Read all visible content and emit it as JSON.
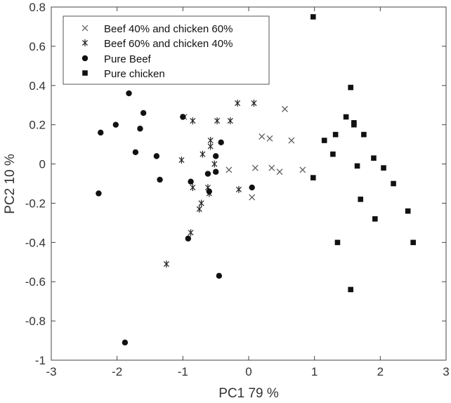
{
  "chart_data": {
    "type": "scatter",
    "xlabel": "PC1  79 %",
    "ylabel": "PC2  10 %",
    "xlim": [
      -3,
      3
    ],
    "ylim": [
      -1,
      0.8
    ],
    "xticks": [
      -3,
      -2,
      -1,
      0,
      1,
      2,
      3
    ],
    "yticks": [
      0.8,
      0.6,
      0.4,
      0.2,
      0,
      -0.2,
      -0.4,
      -0.6,
      -0.8,
      -1
    ],
    "xtick_labels": [
      "-3",
      "-2",
      "-1",
      "0",
      "1",
      "2",
      "3"
    ],
    "ytick_labels": [
      "0.8",
      "0.6",
      "0.4",
      "0.2",
      "0",
      "-0.2",
      "-0.4",
      "-0.6",
      "-0.8",
      "-1"
    ],
    "grid": false,
    "legend_position": "top-left",
    "series": [
      {
        "name": "Beef 40% and chicken 60%",
        "marker": "x",
        "color": "#555555",
        "points": [
          [
            0.55,
            0.28
          ],
          [
            0.2,
            0.14
          ],
          [
            0.32,
            0.13
          ],
          [
            0.65,
            0.12
          ],
          [
            0.1,
            -0.02
          ],
          [
            0.35,
            -0.02
          ],
          [
            0.47,
            -0.04
          ],
          [
            0.82,
            -0.03
          ],
          [
            0.05,
            -0.17
          ],
          [
            -0.3,
            -0.03
          ],
          [
            -0.98,
            0.24
          ]
        ]
      },
      {
        "name": "Beef 60% and chicken 40%",
        "marker": "asterisk",
        "color": "#222222",
        "points": [
          [
            -0.17,
            0.31
          ],
          [
            0.08,
            0.31
          ],
          [
            -0.28,
            0.22
          ],
          [
            -0.48,
            0.22
          ],
          [
            -0.85,
            0.22
          ],
          [
            -0.58,
            0.12
          ],
          [
            -0.58,
            0.09
          ],
          [
            -1.02,
            0.02
          ],
          [
            -0.7,
            0.05
          ],
          [
            -0.52,
            0.0
          ],
          [
            -0.85,
            -0.12
          ],
          [
            -0.62,
            -0.12
          ],
          [
            -0.72,
            -0.2
          ],
          [
            -0.75,
            -0.23
          ],
          [
            -0.6,
            -0.15
          ],
          [
            -0.15,
            -0.13
          ],
          [
            -0.88,
            -0.35
          ],
          [
            -1.25,
            -0.51
          ]
        ]
      },
      {
        "name": "Pure Beef",
        "marker": "circle",
        "color": "#111111",
        "points": [
          [
            -1.82,
            0.36
          ],
          [
            -1.6,
            0.26
          ],
          [
            -2.25,
            0.16
          ],
          [
            -2.02,
            0.2
          ],
          [
            -1.65,
            0.18
          ],
          [
            -1.0,
            0.24
          ],
          [
            -1.72,
            0.06
          ],
          [
            -1.4,
            0.04
          ],
          [
            -0.5,
            0.04
          ],
          [
            -0.42,
            0.11
          ],
          [
            -2.28,
            -0.15
          ],
          [
            -1.35,
            -0.08
          ],
          [
            -0.88,
            -0.09
          ],
          [
            -0.62,
            -0.05
          ],
          [
            -0.5,
            -0.04
          ],
          [
            -0.6,
            -0.14
          ],
          [
            0.05,
            -0.12
          ],
          [
            -0.92,
            -0.38
          ],
          [
            -0.45,
            -0.57
          ],
          [
            -1.88,
            -0.91
          ]
        ]
      },
      {
        "name": "Pure chicken",
        "marker": "square",
        "color": "#111111",
        "points": [
          [
            0.98,
            0.75
          ],
          [
            1.55,
            0.39
          ],
          [
            1.48,
            0.24
          ],
          [
            1.6,
            0.21
          ],
          [
            1.6,
            0.2
          ],
          [
            1.32,
            0.15
          ],
          [
            1.15,
            0.12
          ],
          [
            1.75,
            0.15
          ],
          [
            1.28,
            0.05
          ],
          [
            1.9,
            0.03
          ],
          [
            1.65,
            -0.01
          ],
          [
            2.05,
            -0.02
          ],
          [
            0.98,
            -0.07
          ],
          [
            2.2,
            -0.1
          ],
          [
            1.7,
            -0.18
          ],
          [
            2.42,
            -0.24
          ],
          [
            1.92,
            -0.28
          ],
          [
            1.35,
            -0.4
          ],
          [
            2.5,
            -0.4
          ],
          [
            1.55,
            -0.64
          ]
        ]
      }
    ]
  }
}
